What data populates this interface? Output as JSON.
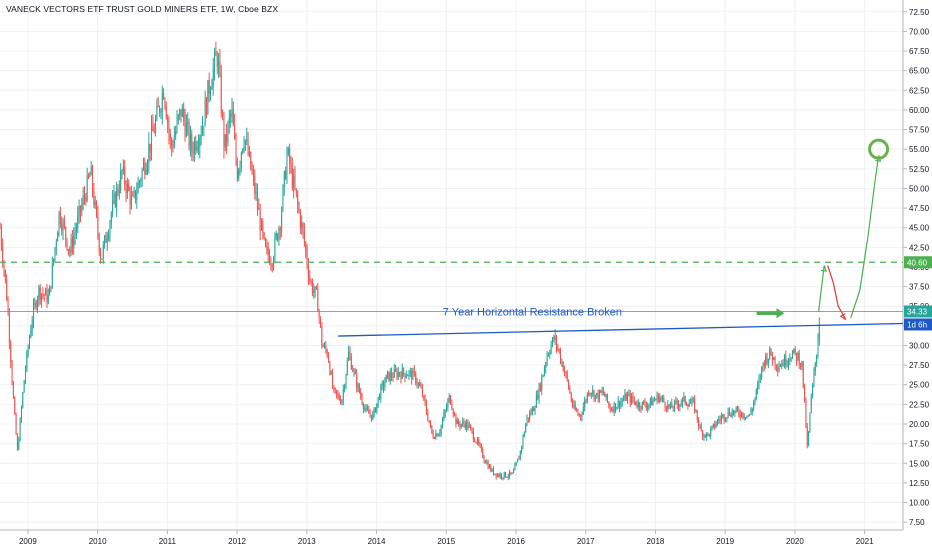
{
  "chart_data": {
    "type": "candlestick",
    "title": "VANECK VECTORS ETF TRUST GOLD MINERS ETF, 1W, Cboe BZX",
    "y_axis": {
      "position": "right",
      "ylim": [
        6.5,
        74
      ],
      "ticks": [
        "7.50",
        "10.00",
        "12.50",
        "15.00",
        "17.50",
        "20.00",
        "22.50",
        "25.00",
        "27.50",
        "30.00",
        "32.50",
        "35.00",
        "37.50",
        "40.00",
        "42.50",
        "45.00",
        "47.50",
        "50.00",
        "52.50",
        "55.00",
        "57.50",
        "60.00",
        "62.50",
        "65.00",
        "67.50",
        "70.00",
        "72.50"
      ]
    },
    "x_axis": {
      "range": [
        2008.6,
        2021.55
      ],
      "ticks": [
        {
          "t": 2009,
          "label": "2009"
        },
        {
          "t": 2010,
          "label": "2010"
        },
        {
          "t": 2011,
          "label": "2011"
        },
        {
          "t": 2012,
          "label": "2012"
        },
        {
          "t": 2013,
          "label": "2013"
        },
        {
          "t": 2014,
          "label": "2014"
        },
        {
          "t": 2015,
          "label": "2015"
        },
        {
          "t": 2016,
          "label": "2016"
        },
        {
          "t": 2017,
          "label": "2017"
        },
        {
          "t": 2018,
          "label": "2018"
        },
        {
          "t": 2019,
          "label": "2019"
        },
        {
          "t": 2020,
          "label": "2020"
        },
        {
          "t": 2021,
          "label": "2021"
        }
      ]
    },
    "grid": true,
    "colors": {
      "up": "#26a69a",
      "down": "#ef5350",
      "grid": "#eef0f3",
      "axis_text": "#131722"
    },
    "price_path": [
      [
        2008.6,
        45.0
      ],
      [
        2008.7,
        36.0
      ],
      [
        2008.8,
        22.0
      ],
      [
        2008.85,
        16.5
      ],
      [
        2008.95,
        26.0
      ],
      [
        2009.05,
        33.0
      ],
      [
        2009.15,
        37.0
      ],
      [
        2009.3,
        36.0
      ],
      [
        2009.45,
        47.0
      ],
      [
        2009.6,
        42.0
      ],
      [
        2009.75,
        47.0
      ],
      [
        2009.9,
        52.0
      ],
      [
        2010.05,
        41.0
      ],
      [
        2010.2,
        47.0
      ],
      [
        2010.35,
        52.0
      ],
      [
        2010.5,
        48.0
      ],
      [
        2010.7,
        54.0
      ],
      [
        2010.85,
        59.0
      ],
      [
        2010.95,
        63.0
      ],
      [
        2011.05,
        55.0
      ],
      [
        2011.2,
        60.0
      ],
      [
        2011.35,
        55.0
      ],
      [
        2011.5,
        58.0
      ],
      [
        2011.62,
        64.0
      ],
      [
        2011.72,
        67.0
      ],
      [
        2011.82,
        55.0
      ],
      [
        2011.92,
        60.0
      ],
      [
        2012.0,
        52.0
      ],
      [
        2012.1,
        57.0
      ],
      [
        2012.25,
        50.0
      ],
      [
        2012.4,
        42.0
      ],
      [
        2012.5,
        41.0
      ],
      [
        2012.62,
        46.0
      ],
      [
        2012.72,
        54.5
      ],
      [
        2012.82,
        50.0
      ],
      [
        2012.95,
        44.0
      ],
      [
        2013.05,
        38.0
      ],
      [
        2013.15,
        36.0
      ],
      [
        2013.22,
        30.0
      ],
      [
        2013.3,
        29.0
      ],
      [
        2013.38,
        24.0
      ],
      [
        2013.5,
        23.0
      ],
      [
        2013.6,
        29.0
      ],
      [
        2013.72,
        25.0
      ],
      [
        2013.85,
        21.5
      ],
      [
        2013.95,
        21.0
      ],
      [
        2014.05,
        24.0
      ],
      [
        2014.15,
        26.0
      ],
      [
        2014.3,
        26.5
      ],
      [
        2014.45,
        26.5
      ],
      [
        2014.55,
        26.0
      ],
      [
        2014.65,
        24.0
      ],
      [
        2014.8,
        18.5
      ],
      [
        2014.9,
        19.0
      ],
      [
        2015.05,
        23.5
      ],
      [
        2015.15,
        20.0
      ],
      [
        2015.3,
        20.0
      ],
      [
        2015.45,
        17.5
      ],
      [
        2015.55,
        15.5
      ],
      [
        2015.65,
        14.0
      ],
      [
        2015.75,
        13.5
      ],
      [
        2015.85,
        13.5
      ],
      [
        2015.95,
        13.5
      ],
      [
        2016.05,
        16.0
      ],
      [
        2016.15,
        20.5
      ],
      [
        2016.25,
        22.0
      ],
      [
        2016.35,
        25.0
      ],
      [
        2016.45,
        29.0
      ],
      [
        2016.55,
        31.0
      ],
      [
        2016.62,
        29.0
      ],
      [
        2016.72,
        26.0
      ],
      [
        2016.82,
        22.0
      ],
      [
        2016.92,
        21.0
      ],
      [
        2017.05,
        24.5
      ],
      [
        2017.15,
        23.5
      ],
      [
        2017.25,
        24.0
      ],
      [
        2017.35,
        22.0
      ],
      [
        2017.45,
        22.5
      ],
      [
        2017.6,
        23.5
      ],
      [
        2017.75,
        22.5
      ],
      [
        2017.9,
        22.5
      ],
      [
        2018.05,
        23.5
      ],
      [
        2018.2,
        22.0
      ],
      [
        2018.4,
        23.0
      ],
      [
        2018.55,
        22.5
      ],
      [
        2018.65,
        19.0
      ],
      [
        2018.75,
        18.5
      ],
      [
        2018.9,
        20.5
      ],
      [
        2019.05,
        21.5
      ],
      [
        2019.2,
        21.5
      ],
      [
        2019.35,
        21.0
      ],
      [
        2019.45,
        24.0
      ],
      [
        2019.55,
        28.0
      ],
      [
        2019.65,
        29.0
      ],
      [
        2019.75,
        27.5
      ],
      [
        2019.85,
        28.0
      ],
      [
        2019.95,
        29.0
      ],
      [
        2020.05,
        28.5
      ],
      [
        2020.1,
        27.5
      ],
      [
        2020.15,
        21.0
      ],
      [
        2020.18,
        16.5
      ],
      [
        2020.22,
        22.0
      ],
      [
        2020.27,
        26.0
      ],
      [
        2020.32,
        30.0
      ],
      [
        2020.36,
        34.3
      ]
    ],
    "markers": [
      {
        "y": 16.0
      },
      {
        "y": 67.0
      },
      {
        "y": 12.5
      }
    ],
    "hlines": [
      {
        "name": "resistance-dashed-line",
        "y": 40.6,
        "color": "#4caf50",
        "style": "dashed",
        "label": "40.60"
      },
      {
        "name": "current-price-line",
        "y": 34.33,
        "color": "#26a69a",
        "style": "solid",
        "label": "34.33"
      }
    ],
    "time_to_bar_close": "1d 6h",
    "trendline": {
      "from": [
        2013.45,
        31.2
      ],
      "to": [
        2021.55,
        32.8
      ],
      "color": "#1e59c7"
    },
    "annotation": {
      "text": "7 Year Horizontal Resistance Broken",
      "at": [
        2014.95,
        34.3
      ],
      "color": "#1e59c7"
    },
    "annotation_arrow": {
      "from": [
        2019.45,
        34.1
      ],
      "to": [
        2019.85,
        34.1
      ],
      "color": "#4caf50"
    },
    "projection": {
      "green_up": [
        [
          2020.34,
          34.3
        ],
        [
          2020.42,
          40.2
        ]
      ],
      "red_down": [
        [
          2020.47,
          40.2
        ],
        [
          2020.55,
          38.0
        ],
        [
          2020.62,
          35.0
        ],
        [
          2020.73,
          33.3
        ]
      ],
      "green_target": [
        [
          2020.8,
          33.5
        ],
        [
          2020.93,
          37.0
        ],
        [
          2021.05,
          44.0
        ],
        [
          2021.15,
          51.0
        ],
        [
          2021.2,
          54.2
        ]
      ],
      "target": {
        "t": 2021.2,
        "y": 55.0
      }
    }
  }
}
